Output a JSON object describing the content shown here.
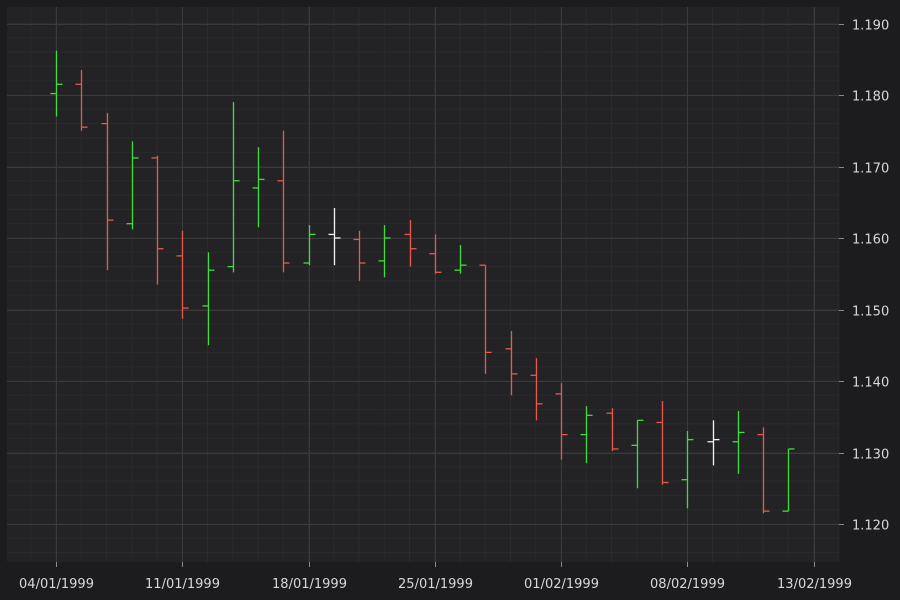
{
  "colors": {
    "background": "#1c1c1e",
    "plot_background": "#232325",
    "grid_major": "#3a3a3d",
    "grid_minor": "#2b2b2e",
    "up": "#3fdc3f",
    "down": "#e8584c",
    "neutral": "#f2f2f2",
    "text": "#d8d8d8"
  },
  "chart_data": {
    "type": "ohlc",
    "title": "",
    "xlabel": "",
    "ylabel": "",
    "ylim": [
      1.115,
      1.192
    ],
    "y_ticks": [
      1.12,
      1.13,
      1.14,
      1.15,
      1.16,
      1.17,
      1.18,
      1.19
    ],
    "y_tick_labels": [
      "1.120",
      "1.130",
      "1.140",
      "1.150",
      "1.160",
      "1.170",
      "1.180",
      "1.190"
    ],
    "x_tick_labels": [
      "04/01/1999",
      "11/01/1999",
      "18/01/1999",
      "25/01/1999",
      "01/02/1999",
      "08/02/1999",
      "13/02/1999"
    ],
    "x_tick_positions": [
      0,
      5,
      10,
      15,
      20,
      25,
      30
    ],
    "grid": true,
    "legend": "none",
    "bars": [
      {
        "o": 1.1802,
        "h": 1.1862,
        "l": 1.177,
        "c": 1.1815
      },
      {
        "o": 1.1815,
        "h": 1.1835,
        "l": 1.175,
        "c": 1.1755
      },
      {
        "o": 1.176,
        "h": 1.1775,
        "l": 1.1555,
        "c": 1.1625
      },
      {
        "o": 1.162,
        "h": 1.1735,
        "l": 1.1612,
        "c": 1.1712
      },
      {
        "o": 1.1712,
        "h": 1.1715,
        "l": 1.1535,
        "c": 1.1585
      },
      {
        "o": 1.1575,
        "h": 1.161,
        "l": 1.1487,
        "c": 1.1502
      },
      {
        "o": 1.1505,
        "h": 1.158,
        "l": 1.145,
        "c": 1.1555
      },
      {
        "o": 1.156,
        "h": 1.179,
        "l": 1.1552,
        "c": 1.168
      },
      {
        "o": 1.167,
        "h": 1.1727,
        "l": 1.1615,
        "c": 1.1682
      },
      {
        "o": 1.168,
        "h": 1.175,
        "l": 1.1552,
        "c": 1.1565
      },
      {
        "o": 1.1565,
        "h": 1.1618,
        "l": 1.1562,
        "c": 1.1605
      },
      {
        "o": 1.1605,
        "h": 1.1642,
        "l": 1.1562,
        "c": 1.16
      },
      {
        "o": 1.1598,
        "h": 1.161,
        "l": 1.154,
        "c": 1.1565
      },
      {
        "o": 1.1568,
        "h": 1.1618,
        "l": 1.1545,
        "c": 1.16
      },
      {
        "o": 1.1605,
        "h": 1.1625,
        "l": 1.156,
        "c": 1.1585
      },
      {
        "o": 1.1578,
        "h": 1.1605,
        "l": 1.155,
        "c": 1.1552
      },
      {
        "o": 1.1555,
        "h": 1.159,
        "l": 1.155,
        "c": 1.1562
      },
      {
        "o": 1.1562,
        "h": 1.1562,
        "l": 1.141,
        "c": 1.144
      },
      {
        "o": 1.1445,
        "h": 1.147,
        "l": 1.138,
        "c": 1.141
      },
      {
        "o": 1.1408,
        "h": 1.1432,
        "l": 1.1345,
        "c": 1.1368
      },
      {
        "o": 1.1382,
        "h": 1.1397,
        "l": 1.129,
        "c": 1.1325
      },
      {
        "o": 1.1325,
        "h": 1.1365,
        "l": 1.1285,
        "c": 1.1352
      },
      {
        "o": 1.1355,
        "h": 1.1362,
        "l": 1.1302,
        "c": 1.1305
      },
      {
        "o": 1.131,
        "h": 1.1345,
        "l": 1.125,
        "c": 1.1345
      },
      {
        "o": 1.1342,
        "h": 1.1372,
        "l": 1.1255,
        "c": 1.1258
      },
      {
        "o": 1.1262,
        "h": 1.133,
        "l": 1.1222,
        "c": 1.1318
      },
      {
        "o": 1.1315,
        "h": 1.1345,
        "l": 1.1282,
        "c": 1.1318
      },
      {
        "o": 1.1315,
        "h": 1.1358,
        "l": 1.127,
        "c": 1.1328
      },
      {
        "o": 1.1325,
        "h": 1.1335,
        "l": 1.1215,
        "c": 1.1218
      },
      {
        "o": 1.1218,
        "h": 1.1305,
        "l": 1.1218,
        "c": 1.1305
      }
    ]
  }
}
